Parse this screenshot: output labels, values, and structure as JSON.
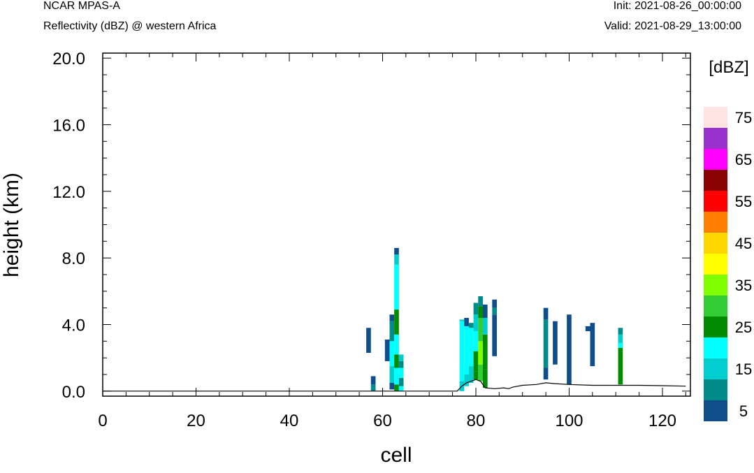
{
  "header": {
    "model": "NCAR MPAS-A",
    "subtitle": "Reflectivity (dBZ) @ western Africa",
    "init": "Init: 2021-08-26_00:00:00",
    "valid": "Valid: 2021-08-29_13:00:00"
  },
  "chart_data": {
    "type": "heatmap",
    "xlabel": "cell",
    "ylabel": "height (km)",
    "xlim": [
      0,
      126
    ],
    "ylim": [
      -0.3,
      20.3
    ],
    "xticks": [
      0,
      20,
      40,
      60,
      80,
      100,
      120
    ],
    "xtick_labels": [
      "0",
      "20",
      "40",
      "60",
      "80",
      "100",
      "120"
    ],
    "yticks": [
      0,
      4,
      8,
      12,
      16,
      20
    ],
    "ytick_labels": [
      "0.0",
      "4.0",
      "8.0",
      "12.0",
      "16.0",
      "20.0"
    ],
    "colorbar": {
      "title": "[dBZ]",
      "levels": [
        5,
        10,
        15,
        20,
        25,
        30,
        35,
        40,
        45,
        50,
        55,
        60,
        65,
        70,
        75,
        80
      ],
      "labels": [
        "5",
        "15",
        "25",
        "35",
        "45",
        "55",
        "65",
        "75"
      ],
      "colors": [
        "#104e8b",
        "#008b8b",
        "#00cdcd",
        "#00ffff",
        "#008b00",
        "#32cd32",
        "#7fff00",
        "#ffff00",
        "#ffd700",
        "#ff8000",
        "#ff0000",
        "#8b0000",
        "#ff00ff",
        "#9932cc",
        "#ffe4e1"
      ]
    },
    "terrain": [
      [
        0,
        0
      ],
      [
        76,
        0
      ],
      [
        77,
        0.3
      ],
      [
        78,
        0.5
      ],
      [
        80,
        0.7
      ],
      [
        81,
        0.6
      ],
      [
        82,
        0.2
      ],
      [
        84,
        0.15
      ],
      [
        86,
        0.2
      ],
      [
        87,
        0.15
      ],
      [
        88,
        0.25
      ],
      [
        90,
        0.35
      ],
      [
        93,
        0.4
      ],
      [
        95,
        0.5
      ],
      [
        97,
        0.45
      ],
      [
        100,
        0.4
      ],
      [
        105,
        0.35
      ],
      [
        110,
        0.35
      ],
      [
        115,
        0.35
      ],
      [
        120,
        0.33
      ],
      [
        125,
        0.3
      ]
    ],
    "cells": [
      {
        "x": 57,
        "segments": [
          [
            2.3,
            3.8,
            5
          ]
        ]
      },
      {
        "x": 58,
        "segments": [
          [
            0.0,
            0.4,
            10
          ],
          [
            0.4,
            0.9,
            5
          ]
        ]
      },
      {
        "x": 61,
        "segments": [
          [
            1.8,
            3.1,
            5
          ]
        ]
      },
      {
        "x": 62,
        "segments": [
          [
            0.1,
            0.5,
            5
          ],
          [
            0.5,
            1.5,
            15
          ],
          [
            1.5,
            3.0,
            20
          ],
          [
            3.0,
            4.2,
            10
          ],
          [
            4.2,
            4.6,
            5
          ]
        ]
      },
      {
        "x": 63,
        "segments": [
          [
            0.0,
            0.4,
            25
          ],
          [
            0.4,
            1.4,
            20
          ],
          [
            1.4,
            2.2,
            25
          ],
          [
            2.2,
            3.4,
            20
          ],
          [
            3.4,
            4.9,
            25
          ],
          [
            4.9,
            7.6,
            20
          ],
          [
            7.6,
            8.2,
            15
          ],
          [
            8.2,
            8.6,
            5
          ]
        ]
      },
      {
        "x": 64,
        "segments": [
          [
            0.0,
            0.3,
            20
          ],
          [
            0.3,
            0.8,
            10
          ],
          [
            0.8,
            1.4,
            20
          ],
          [
            1.4,
            1.8,
            10
          ],
          [
            1.8,
            2.2,
            15
          ]
        ]
      },
      {
        "x": 77,
        "segments": [
          [
            0.0,
            0.6,
            15
          ],
          [
            0.6,
            4.2,
            20
          ],
          [
            4.2,
            4.3,
            15
          ]
        ]
      },
      {
        "x": 78,
        "segments": [
          [
            0.3,
            1.0,
            15
          ],
          [
            1.0,
            3.9,
            20
          ],
          [
            3.9,
            4.4,
            5
          ]
        ]
      },
      {
        "x": 79,
        "segments": [
          [
            0.5,
            1.5,
            15
          ],
          [
            1.5,
            3.8,
            20
          ],
          [
            3.8,
            4.1,
            10
          ]
        ]
      },
      {
        "x": 80,
        "segments": [
          [
            0.7,
            1.2,
            25
          ],
          [
            1.2,
            2.4,
            25
          ],
          [
            2.4,
            3.6,
            20
          ],
          [
            3.6,
            4.6,
            15
          ],
          [
            4.6,
            5.3,
            10
          ]
        ]
      },
      {
        "x": 81,
        "segments": [
          [
            0.6,
            1.6,
            30
          ],
          [
            1.6,
            3.0,
            35
          ],
          [
            3.0,
            4.4,
            30
          ],
          [
            4.4,
            5.1,
            25
          ],
          [
            5.1,
            5.7,
            10
          ]
        ]
      },
      {
        "x": 82,
        "segments": [
          [
            0.2,
            1.3,
            25
          ],
          [
            1.3,
            3.4,
            25
          ],
          [
            3.4,
            4.4,
            15
          ],
          [
            4.4,
            5.2,
            5
          ]
        ]
      },
      {
        "x": 84,
        "segments": [
          [
            2.1,
            4.6,
            5
          ],
          [
            4.6,
            5.0,
            10
          ],
          [
            5.0,
            5.5,
            5
          ]
        ]
      },
      {
        "x": 95,
        "segments": [
          [
            0.7,
            1.4,
            5
          ],
          [
            1.4,
            4.3,
            10
          ],
          [
            4.3,
            5.0,
            5
          ]
        ]
      },
      {
        "x": 97,
        "segments": [
          [
            1.6,
            4.2,
            5
          ]
        ]
      },
      {
        "x": 100,
        "segments": [
          [
            0.4,
            4.6,
            5
          ]
        ]
      },
      {
        "x": 104,
        "segments": [
          [
            3.6,
            3.9,
            5
          ]
        ]
      },
      {
        "x": 105,
        "segments": [
          [
            1.5,
            4.1,
            5
          ]
        ]
      },
      {
        "x": 111,
        "segments": [
          [
            0.4,
            2.6,
            25
          ],
          [
            2.6,
            2.9,
            20
          ],
          [
            2.9,
            3.4,
            15
          ],
          [
            3.4,
            3.8,
            10
          ]
        ]
      }
    ]
  }
}
